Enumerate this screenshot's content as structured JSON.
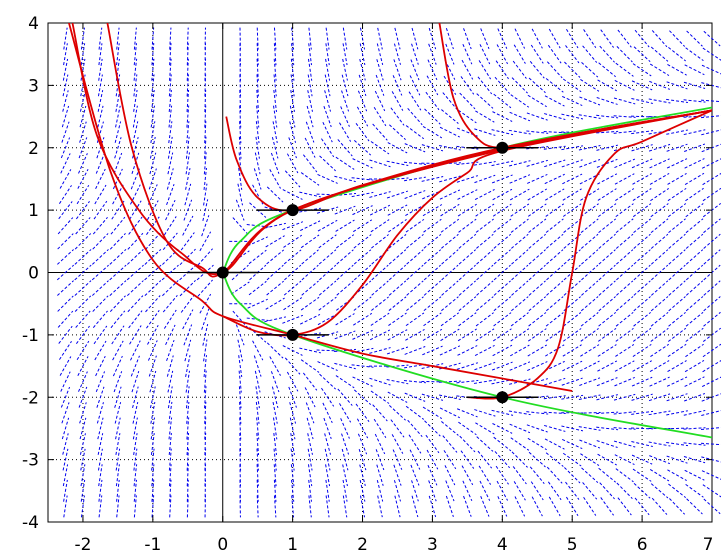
{
  "chart_data": {
    "type": "line",
    "title": "",
    "xlabel": "",
    "ylabel": "",
    "xlim": [
      -2.5,
      7
    ],
    "ylim": [
      -4,
      4
    ],
    "grid": true,
    "x_ticks": [
      "-2",
      "-1",
      "0",
      "1",
      "2",
      "3",
      "4",
      "5",
      "6",
      "7"
    ],
    "y_ticks": [
      "4",
      "3",
      "2",
      "1",
      "0",
      "-1",
      "-2",
      "-3",
      "-4"
    ],
    "direction_field": "dy/dx = (x - y^2) / x",
    "colors": {
      "field": "#0000ee",
      "solution": "#dd0000",
      "nullcline": "#22dd22",
      "marker": "#000000",
      "grid": "#000000"
    },
    "series": [
      {
        "name": "",
        "kind": "nullcline",
        "points": [
          [
            0,
            0
          ],
          [
            0.25,
            0.5
          ],
          [
            1,
            1
          ],
          [
            4,
            2
          ],
          [
            7,
            2.646
          ]
        ]
      },
      {
        "name": "",
        "kind": "nullcline",
        "points": [
          [
            0,
            0
          ],
          [
            0.25,
            -0.5
          ],
          [
            1,
            -1
          ],
          [
            4,
            -2
          ],
          [
            7,
            -2.646
          ]
        ]
      },
      {
        "name": "",
        "kind": "solution",
        "points": [
          [
            -2.15,
            4
          ],
          [
            -1.8,
            2.2
          ],
          [
            -1.2,
            1.0
          ],
          [
            -0.6,
            0.32
          ],
          [
            0,
            0
          ],
          [
            1,
            1
          ],
          [
            4,
            1.97
          ],
          [
            7,
            2.6
          ]
        ]
      },
      {
        "name": "",
        "kind": "solution",
        "points": [
          [
            -2.2,
            4
          ],
          [
            -1.6,
            1.6
          ],
          [
            -1.0,
            0.2
          ],
          [
            -0.3,
            -0.45
          ],
          [
            0,
            -0.7
          ],
          [
            1,
            -1.0
          ],
          [
            2,
            -1.3
          ],
          [
            3,
            -1.5
          ],
          [
            4,
            -1.7
          ],
          [
            5,
            -1.9
          ]
        ]
      },
      {
        "name": "",
        "kind": "solution",
        "points": [
          [
            -1.65,
            4
          ],
          [
            -1.3,
            2.0
          ],
          [
            -0.8,
            0.5
          ],
          [
            -0.3,
            0.08
          ],
          [
            0,
            0
          ],
          [
            1,
            1
          ],
          [
            4,
            1.98
          ],
          [
            7,
            2.6
          ]
        ]
      },
      {
        "name": "",
        "kind": "solution",
        "points": [
          [
            0.05,
            2.5
          ],
          [
            0.2,
            1.8
          ],
          [
            0.5,
            1.2
          ],
          [
            1,
            1
          ],
          [
            2,
            1.4
          ],
          [
            4,
            2.0
          ],
          [
            7,
            2.6
          ]
        ]
      },
      {
        "name": "",
        "kind": "solution",
        "points": [
          [
            0,
            -0.7
          ],
          [
            0.5,
            -0.95
          ],
          [
            1,
            -1
          ],
          [
            1.5,
            -0.8
          ],
          [
            2,
            -0.2
          ],
          [
            2.5,
            0.6
          ],
          [
            3,
            1.2
          ],
          [
            3.5,
            1.6
          ],
          [
            4,
            1.95
          ],
          [
            7,
            2.6
          ]
        ]
      },
      {
        "name": "",
        "kind": "solution",
        "points": [
          [
            3.1,
            4
          ],
          [
            3.3,
            2.8
          ],
          [
            3.6,
            2.2
          ],
          [
            4,
            2
          ],
          [
            5,
            2.2
          ],
          [
            7,
            2.6
          ]
        ]
      },
      {
        "name": "",
        "kind": "solution",
        "points": [
          [
            3.5,
            -2.0
          ],
          [
            4,
            -2
          ],
          [
            4.5,
            -1.7
          ],
          [
            4.8,
            -1.2
          ],
          [
            5,
            0
          ],
          [
            5.2,
            1.2
          ],
          [
            5.6,
            1.9
          ],
          [
            6,
            2.1
          ],
          [
            7,
            2.6
          ]
        ]
      }
    ],
    "points": [
      [
        0,
        0
      ],
      [
        1,
        1
      ],
      [
        1,
        -1
      ],
      [
        4,
        2
      ],
      [
        4,
        -2
      ]
    ]
  }
}
